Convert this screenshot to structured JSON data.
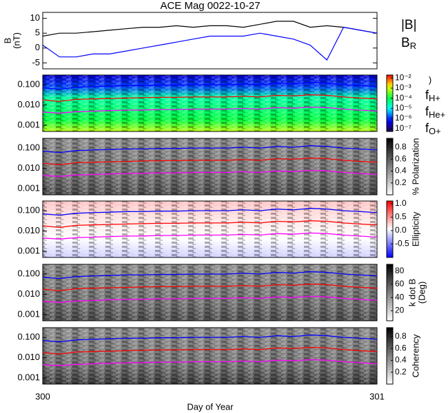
{
  "title": "ACE Mag 0022-10-27",
  "xaxis": {
    "label": "Day of Year",
    "xlim": [
      300,
      301
    ],
    "xticks": [
      300,
      301
    ]
  },
  "chart_data": [
    {
      "type": "line",
      "ylabel": "B",
      "ylabel_unit": "(nT)",
      "ylim": [
        -7,
        12
      ],
      "yticks": [
        -5,
        0,
        5,
        10
      ],
      "x": [
        300.0,
        300.05,
        300.1,
        300.15,
        300.2,
        300.25,
        300.3,
        300.35,
        300.4,
        300.45,
        300.5,
        300.55,
        300.6,
        300.65,
        300.7,
        300.75,
        300.8,
        300.85,
        300.9,
        300.95,
        301.0
      ],
      "series": [
        {
          "name": "|B|",
          "color": "#000000",
          "values": [
            4,
            5,
            5,
            5.5,
            6,
            6.5,
            7,
            7,
            7.5,
            7,
            7.5,
            7.5,
            7,
            8,
            9,
            9,
            7,
            7.5,
            7,
            6,
            5
          ]
        },
        {
          "name": "B",
          "subscript": "R",
          "color": "#0000ff",
          "values": [
            1,
            -3,
            -3,
            -2,
            -2,
            -1,
            0,
            1,
            2,
            3,
            4,
            4,
            4,
            5,
            4,
            3,
            1,
            -4,
            7,
            6,
            5
          ]
        }
      ]
    },
    {
      "type": "spectrogram",
      "log": true,
      "ylim": [
        0.0005,
        0.3
      ],
      "yticks": [
        0.001,
        {
          "value": 0.01,
          "label": "0.010"
        },
        {
          "value": 0.1,
          "label": "0.100"
        }
      ],
      "colorbar": {
        "label": ")",
        "lim": [
          -7.3,
          -1.7
        ],
        "ticks": [
          {
            "value": -2,
            "label": "10⁻²"
          },
          {
            "value": -3,
            "label": "10⁻³"
          },
          {
            "value": -4,
            "label": "10⁻⁴"
          },
          {
            "value": -5,
            "label": "10⁻⁵"
          },
          {
            "value": -6,
            "label": "10⁻⁶"
          },
          {
            "value": -7,
            "label": "10⁻⁷"
          }
        ],
        "colormap": [
          "#20004a",
          "#0000ff",
          "#00ffff",
          "#00ff40",
          "#ffff00",
          "#ff0000"
        ]
      }
    },
    {
      "type": "spectrogram",
      "log": true,
      "ylim": [
        0.0005,
        0.3
      ],
      "yticks": [
        0.001,
        {
          "value": 0.01,
          "label": "0.010"
        },
        {
          "value": 0.1,
          "label": "0.100"
        }
      ],
      "colorbar": {
        "label": "% Polarization",
        "lim": [
          0,
          0.95
        ],
        "ticks": [
          0.2,
          0.4,
          0.6,
          0.8
        ],
        "colormap": [
          "#ffffff",
          "#000000"
        ]
      }
    },
    {
      "type": "spectrogram",
      "log": true,
      "ylim": [
        0.0005,
        0.3
      ],
      "yticks": [
        0.001,
        {
          "value": 0.01,
          "label": "0.010"
        },
        {
          "value": 0.1,
          "label": "0.100"
        }
      ],
      "colorbar": {
        "label": "Ellipticity",
        "lim": [
          -1,
          1.1
        ],
        "ticks": [
          -0.5,
          {
            "value": 0,
            "label": "0.0"
          },
          0.5,
          {
            "value": 1,
            "label": "1.0"
          }
        ],
        "colormap": [
          "#0000ff",
          "#ffffff",
          "#ff0000"
        ]
      }
    },
    {
      "type": "spectrogram",
      "log": true,
      "ylim": [
        0.0005,
        0.3
      ],
      "yticks": [
        0.001,
        {
          "value": 0.01,
          "label": "0.010"
        },
        {
          "value": 0.1,
          "label": "0.100"
        }
      ],
      "colorbar": {
        "label": "k dot B",
        "label_unit": "(Deg)",
        "lim": [
          5,
          90
        ],
        "ticks": [
          20,
          40,
          60,
          80
        ],
        "colormap": [
          "#ffffff",
          "#000000"
        ]
      }
    },
    {
      "type": "spectrogram",
      "log": true,
      "ylim": [
        0.0005,
        0.3
      ],
      "yticks": [
        0.001,
        {
          "value": 0.01,
          "label": "0.010"
        },
        {
          "value": 0.1,
          "label": "0.100"
        }
      ],
      "colorbar": {
        "label": "Coherency",
        "lim": [
          0,
          0.95
        ],
        "ticks": [
          0.2,
          0.4,
          0.6,
          0.8
        ],
        "colormap": [
          "#ffffff",
          "#000000"
        ]
      }
    }
  ],
  "frequency_lines": {
    "x": [
      300.0,
      300.05,
      300.1,
      300.15,
      300.2,
      300.25,
      300.3,
      300.35,
      300.4,
      300.45,
      300.5,
      300.55,
      300.6,
      300.65,
      300.7,
      300.75,
      300.8,
      300.85,
      300.9,
      300.95,
      301.0
    ],
    "series": [
      {
        "name": "f",
        "subscript": "H+",
        "color": "#0000ff",
        "values": [
          0.07,
          0.06,
          0.075,
          0.08,
          0.085,
          0.09,
          0.09,
          0.095,
          0.095,
          0.1,
          0.1,
          0.1,
          0.11,
          0.1,
          0.12,
          0.11,
          0.13,
          0.12,
          0.1,
          0.09,
          0.08
        ]
      },
      {
        "name": "f",
        "subscript": "He+",
        "color": "#ff0000",
        "values": [
          0.018,
          0.015,
          0.019,
          0.02,
          0.021,
          0.022,
          0.023,
          0.024,
          0.024,
          0.025,
          0.025,
          0.025,
          0.027,
          0.025,
          0.03,
          0.028,
          0.032,
          0.03,
          0.025,
          0.022,
          0.02
        ]
      },
      {
        "name": "f",
        "subscript": "O+",
        "color": "#ff00ff",
        "values": [
          0.0045,
          0.004,
          0.0047,
          0.005,
          0.0053,
          0.0056,
          0.0057,
          0.006,
          0.006,
          0.0063,
          0.0063,
          0.0063,
          0.0068,
          0.0063,
          0.0075,
          0.007,
          0.008,
          0.0075,
          0.0063,
          0.0056,
          0.005
        ]
      }
    ]
  }
}
